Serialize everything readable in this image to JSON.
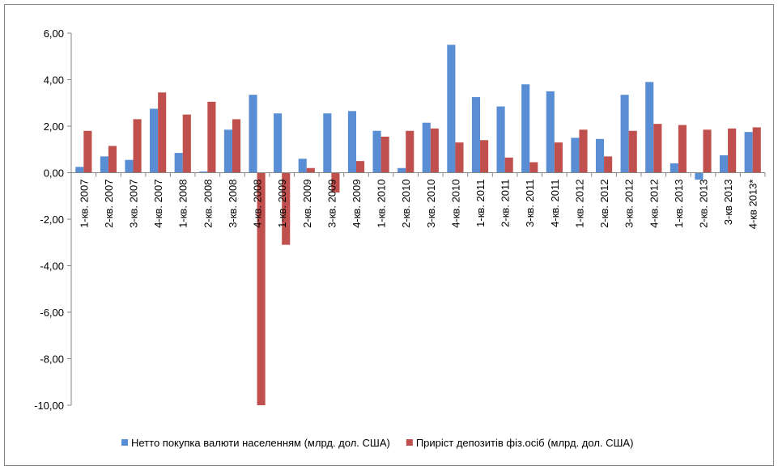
{
  "chart_data": {
    "type": "bar",
    "categories": [
      "1-кв. 2007",
      "2-кв. 2007",
      "3-кв. 2007",
      "4-кв. 2007",
      "1-кв. 2008",
      "2-кв. 2008",
      "3-кв. 2008",
      "4-кв. 2008",
      "1-кв. 2009",
      "2-кв. 2009",
      "3-кв. 2009",
      "4-кв. 2009",
      "1-кв. 2010",
      "2-кв. 2010",
      "3-кв. 2010",
      "4-кв. 2010",
      "1-кв. 2011",
      "2-кв. 2011",
      "3-кв. 2011",
      "4-кв. 2011",
      "1-кв. 2012",
      "2-кв. 2012",
      "3-кв. 2012",
      "4-кв. 2012",
      "1-кв. 2013",
      "2-кв. 2013",
      "3-кв 2013",
      "4-кв 2013*"
    ],
    "series": [
      {
        "name": "Нетто покупка валюти населенням (млрд. дол. США)",
        "color": "#5a8ed4",
        "values": [
          0.25,
          0.7,
          0.55,
          2.75,
          0.85,
          0.05,
          1.85,
          3.35,
          2.55,
          0.6,
          2.55,
          2.65,
          1.8,
          0.2,
          2.15,
          5.5,
          3.25,
          2.85,
          3.8,
          3.5,
          1.5,
          1.45,
          3.35,
          3.9,
          0.4,
          -0.3,
          0.75,
          1.75
        ]
      },
      {
        "name": "Приріст депозитів фіз.осіб (млрд. дол. США)",
        "color": "#c0504d",
        "values": [
          1.8,
          1.15,
          2.3,
          3.45,
          2.5,
          3.05,
          2.3,
          -10,
          -3.1,
          0.2,
          -0.85,
          0.5,
          1.55,
          1.8,
          1.9,
          1.3,
          1.4,
          0.65,
          0.45,
          1.3,
          1.85,
          0.7,
          1.8,
          2.1,
          2.05,
          1.85,
          1.9,
          1.95
        ]
      }
    ],
    "ylim": [
      -10,
      6
    ],
    "yticks": [
      {
        "value": 6,
        "label": "6,00"
      },
      {
        "value": 4,
        "label": "4,00"
      },
      {
        "value": 2,
        "label": "2,00"
      },
      {
        "value": 0,
        "label": "0,00"
      },
      {
        "value": -2,
        "label": "-2,00"
      },
      {
        "value": -4,
        "label": "-4,00"
      },
      {
        "value": -6,
        "label": "-6,00"
      },
      {
        "value": -8,
        "label": "-8,00"
      },
      {
        "value": -10,
        "label": "-10,00"
      }
    ],
    "legend": "bottom"
  }
}
